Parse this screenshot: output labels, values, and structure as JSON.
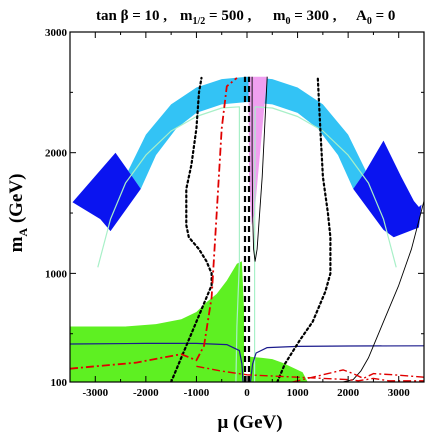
{
  "chart_data": {
    "type": "area",
    "title": "tan β = 10 ,  m1/2 = 500 ,  m0 = 300 , A0 = 0",
    "title_parts": {
      "tb_label": "tan β = 10 ,",
      "m12_label": "m",
      "m12_sub": "1/2",
      "m12_value": " = 500 ,",
      "m0_label": "m",
      "m0_sub": "0",
      "m0_value": " = 300 ,",
      "a0_label": "A",
      "a0_sub": "0",
      "a0_value": " = 0"
    },
    "xlabel": "μ (GeV)",
    "ylabel_main": "m",
    "ylabel_sub": "A",
    "ylabel_unit": " (GeV)",
    "xlim": [
      -3500,
      3500
    ],
    "ylim": [
      100,
      3000
    ],
    "x_ticks": [
      -3000,
      -2000,
      -1000,
      0,
      1000,
      2000,
      3000
    ],
    "y_ticks": [
      100,
      1000,
      2000,
      3000
    ],
    "x_tick_labels": [
      "-3000",
      "-2000",
      "-1000",
      "0",
      "1000",
      "2000",
      "3000"
    ],
    "y_tick_labels": [
      "100",
      "1000",
      "2000",
      "3000"
    ],
    "colors": {
      "light_blue": "#33c3f5",
      "dark_blue": "#0a14f0",
      "green": "#5ef022",
      "pink": "#f0a0f0",
      "pale_green": "#a8f0c8",
      "red": "#e00000",
      "navy": "#1a1a8c",
      "black": "#000000"
    },
    "regions": [
      {
        "name": "light-blue-band",
        "color": "light_blue",
        "outer": [
          [
            -2350,
            1850
          ],
          [
            -2000,
            2150
          ],
          [
            -1500,
            2400
          ],
          [
            -1000,
            2540
          ],
          [
            -500,
            2610
          ],
          [
            0,
            2630
          ],
          [
            500,
            2610
          ],
          [
            1000,
            2540
          ],
          [
            1500,
            2400
          ],
          [
            2000,
            2150
          ],
          [
            2350,
            1850
          ]
        ],
        "inner": [
          [
            2100,
            1700
          ],
          [
            1800,
            1980
          ],
          [
            1400,
            2200
          ],
          [
            1000,
            2330
          ],
          [
            500,
            2400
          ],
          [
            0,
            2420
          ],
          [
            -500,
            2400
          ],
          [
            -1000,
            2330
          ],
          [
            -1400,
            2200
          ],
          [
            -1800,
            1980
          ],
          [
            -2100,
            1700
          ]
        ]
      },
      {
        "name": "dark-blue-band-left",
        "color": "dark_blue",
        "polygon": [
          [
            -3450,
            1590
          ],
          [
            -2900,
            1450
          ],
          [
            -2700,
            1350
          ],
          [
            -2100,
            1700
          ],
          [
            -2350,
            1850
          ],
          [
            -2600,
            2000
          ]
        ]
      },
      {
        "name": "dark-blue-band-right",
        "color": "dark_blue",
        "polygon": [
          [
            2350,
            1850
          ],
          [
            2700,
            2100
          ],
          [
            3050,
            1800
          ],
          [
            3300,
            1600
          ],
          [
            3400,
            1550
          ],
          [
            3450,
            1570
          ],
          [
            3400,
            1380
          ],
          [
            2900,
            1300
          ],
          [
            2700,
            1360
          ],
          [
            2100,
            1700
          ]
        ]
      },
      {
        "name": "pink-wedge",
        "color": "pink",
        "polygon": [
          [
            30,
            2630
          ],
          [
            400,
            2630
          ],
          [
            280,
            2100
          ],
          [
            150,
            1500
          ],
          [
            90,
            1400
          ],
          [
            40,
            1800
          ]
        ]
      },
      {
        "name": "green-region",
        "color": "green",
        "polygon": [
          [
            -3500,
            100
          ],
          [
            -3500,
            560
          ],
          [
            -2400,
            560
          ],
          [
            -1800,
            580
          ],
          [
            -1300,
            620
          ],
          [
            -1000,
            680
          ],
          [
            -800,
            760
          ],
          [
            -600,
            830
          ],
          [
            -400,
            940
          ],
          [
            -200,
            1080
          ],
          [
            -100,
            1100
          ],
          [
            -60,
            700
          ],
          [
            -60,
            100
          ]
        ]
      },
      {
        "name": "green-strip-right",
        "color": "green",
        "polygon": [
          [
            60,
            100
          ],
          [
            60,
            310
          ],
          [
            300,
            300
          ],
          [
            500,
            290
          ],
          [
            700,
            260
          ],
          [
            900,
            220
          ],
          [
            1100,
            180
          ],
          [
            1200,
            100
          ]
        ]
      }
    ],
    "curves": [
      {
        "name": "pale-green-contour-left",
        "color": "pale_green",
        "style": "solid",
        "width": 1.2,
        "points": [
          [
            -2950,
            1050
          ],
          [
            -2700,
            1450
          ],
          [
            -2400,
            1750
          ],
          [
            -2000,
            1980
          ],
          [
            -1500,
            2180
          ],
          [
            -1000,
            2300
          ],
          [
            -500,
            2370
          ],
          [
            -150,
            2380
          ],
          [
            -150,
            1100
          ],
          [
            -200,
            560
          ],
          [
            -220,
            100
          ]
        ]
      },
      {
        "name": "pale-green-contour-right",
        "color": "pale_green",
        "style": "solid",
        "width": 1.2,
        "points": [
          [
            150,
            100
          ],
          [
            150,
            1000
          ],
          [
            160,
            2380
          ],
          [
            500,
            2370
          ],
          [
            1000,
            2300
          ],
          [
            1500,
            2180
          ],
          [
            2000,
            1980
          ],
          [
            2400,
            1750
          ],
          [
            2700,
            1450
          ],
          [
            2950,
            1050
          ]
        ]
      },
      {
        "name": "navy-line",
        "color": "navy",
        "style": "solid",
        "width": 1.2,
        "points": [
          [
            -3500,
            415
          ],
          [
            -2000,
            420
          ],
          [
            -1000,
            420
          ],
          [
            -400,
            410
          ],
          [
            -150,
            360
          ],
          [
            -100,
            250
          ],
          [
            -80,
            100
          ]
        ]
      },
      {
        "name": "navy-line-right",
        "color": "navy",
        "style": "solid",
        "width": 1.2,
        "points": [
          [
            70,
            100
          ],
          [
            110,
            250
          ],
          [
            180,
            340
          ],
          [
            400,
            385
          ],
          [
            1000,
            395
          ],
          [
            2000,
            398
          ],
          [
            3500,
            400
          ]
        ]
      },
      {
        "name": "thin-black-v",
        "color": "black",
        "style": "solid",
        "width": 0.9,
        "points": [
          [
            100,
            2630
          ],
          [
            100,
            2000
          ],
          [
            110,
            1500
          ],
          [
            130,
            1200
          ],
          [
            160,
            1100
          ],
          [
            200,
            1200
          ],
          [
            300,
            1800
          ],
          [
            400,
            2630
          ]
        ]
      },
      {
        "name": "thin-black-right",
        "color": "black",
        "style": "solid",
        "width": 0.9,
        "points": [
          [
            1900,
            100
          ],
          [
            2100,
            120
          ],
          [
            2250,
            190
          ],
          [
            2400,
            300
          ],
          [
            2700,
            600
          ],
          [
            3000,
            900
          ],
          [
            3250,
            1200
          ],
          [
            3500,
            1600
          ]
        ]
      },
      {
        "name": "dash-vertical-left",
        "color": "black",
        "style": "dash",
        "width": 2.2,
        "points": [
          [
            -40,
            100
          ],
          [
            -40,
            2630
          ]
        ]
      },
      {
        "name": "dash-vertical-right",
        "color": "black",
        "style": "dash",
        "width": 2.2,
        "points": [
          [
            40,
            100
          ],
          [
            40,
            2630
          ]
        ]
      },
      {
        "name": "dotted-left",
        "color": "black",
        "style": "dot",
        "width": 2.2,
        "points": [
          [
            -1500,
            100
          ],
          [
            -1350,
            250
          ],
          [
            -1000,
            600
          ],
          [
            -800,
            800
          ],
          [
            -700,
            900
          ],
          [
            -700,
            1000
          ],
          [
            -800,
            1100
          ],
          [
            -950,
            1200
          ],
          [
            -1150,
            1300
          ],
          [
            -1200,
            1400
          ],
          [
            -1200,
            1700
          ],
          [
            -1100,
            1900
          ],
          [
            -1000,
            2200
          ],
          [
            -950,
            2500
          ],
          [
            -900,
            2620
          ]
        ]
      },
      {
        "name": "dotted-right",
        "color": "black",
        "style": "dot",
        "width": 2.2,
        "points": [
          [
            600,
            100
          ],
          [
            750,
            250
          ],
          [
            1050,
            450
          ],
          [
            1300,
            600
          ],
          [
            1550,
            850
          ],
          [
            1650,
            1000
          ],
          [
            1650,
            1300
          ],
          [
            1600,
            1500
          ],
          [
            1500,
            1800
          ],
          [
            1450,
            2200
          ],
          [
            1400,
            2620
          ]
        ]
      },
      {
        "name": "red-dashdot-left",
        "color": "red",
        "style": "dashdot",
        "width": 1.8,
        "points": [
          [
            -3500,
            210
          ],
          [
            -3000,
            230
          ],
          [
            -2200,
            260
          ],
          [
            -1700,
            300
          ],
          [
            -1300,
            330
          ],
          [
            -1000,
            280
          ],
          [
            -850,
            400
          ],
          [
            -700,
            800
          ],
          [
            -600,
            1500
          ],
          [
            -500,
            2200
          ],
          [
            -400,
            2550
          ],
          [
            -200,
            2620
          ]
        ]
      },
      {
        "name": "red-dashdot-bottom",
        "color": "red",
        "style": "dashdot",
        "width": 1.4,
        "points": [
          [
            -1000,
            230
          ],
          [
            -500,
            190
          ],
          [
            0,
            160
          ],
          [
            500,
            150
          ],
          [
            1000,
            140
          ],
          [
            1500,
            130
          ],
          [
            2000,
            120
          ],
          [
            2200,
            110
          ],
          [
            2500,
            130
          ],
          [
            2800,
            110
          ],
          [
            3500,
            110
          ]
        ]
      },
      {
        "name": "red-dashdot-right",
        "color": "red",
        "style": "dashdot",
        "width": 1.4,
        "points": [
          [
            900,
            100
          ],
          [
            1200,
            130
          ],
          [
            1600,
            170
          ],
          [
            1900,
            200
          ],
          [
            2100,
            170
          ],
          [
            2300,
            130
          ],
          [
            2500,
            170
          ],
          [
            2900,
            160
          ],
          [
            3500,
            140
          ]
        ]
      }
    ]
  }
}
